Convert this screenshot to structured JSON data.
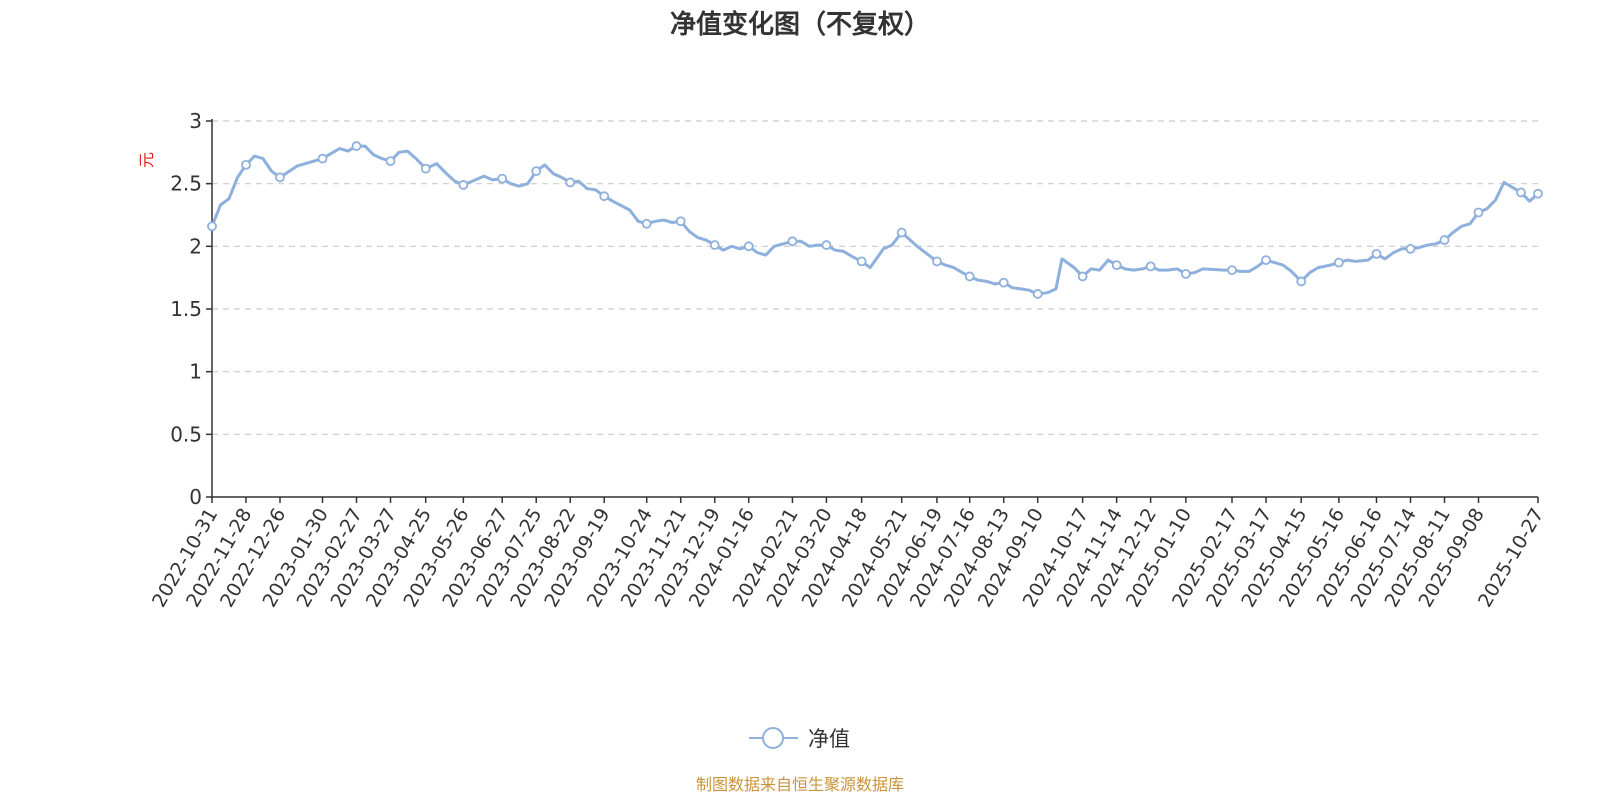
{
  "chart_data": {
    "type": "line",
    "title": "净值变化图（不复权）",
    "ylabel": "元",
    "xlabel": "",
    "ylim": [
      0,
      3
    ],
    "yticks": [
      "0",
      "0.5",
      "1",
      "1.5",
      "2",
      "2.5",
      "3"
    ],
    "grid": true,
    "legend_position": "bottom",
    "line_color": "#8eb0dc",
    "categories": [
      "2022-10-31",
      "2022-11-28",
      "2022-12-26",
      "2023-01-30",
      "2023-02-27",
      "2023-03-27",
      "2023-04-25",
      "2023-05-26",
      "2023-06-27",
      "2023-07-25",
      "2023-08-22",
      "2023-09-19",
      "2023-10-24",
      "2023-11-21",
      "2023-12-19",
      "2024-01-16",
      "2024-02-21",
      "2024-03-20",
      "2024-04-18",
      "2024-05-21",
      "2024-06-19",
      "2024-07-16",
      "2024-08-13",
      "2024-09-10",
      "2024-10-17",
      "2024-11-14",
      "2024-12-12",
      "2025-01-10",
      "2025-02-17",
      "2025-03-17",
      "2025-04-15",
      "2025-05-16",
      "2025-06-16",
      "2025-07-14",
      "2025-08-11",
      "2025-09-08",
      "2025-10-27"
    ],
    "series": [
      {
        "name": "净值",
        "x": [
          "2022-10-31",
          "2022-11-07",
          "2022-11-14",
          "2022-11-21",
          "2022-11-28",
          "2022-12-05",
          "2022-12-12",
          "2022-12-19",
          "2022-12-26",
          "2023-01-09",
          "2023-01-30",
          "2023-02-06",
          "2023-02-13",
          "2023-02-20",
          "2023-02-27",
          "2023-03-06",
          "2023-03-13",
          "2023-03-20",
          "2023-03-27",
          "2023-04-03",
          "2023-04-10",
          "2023-04-17",
          "2023-04-25",
          "2023-05-04",
          "2023-05-12",
          "2023-05-19",
          "2023-05-26",
          "2023-06-05",
          "2023-06-12",
          "2023-06-19",
          "2023-06-27",
          "2023-07-04",
          "2023-07-11",
          "2023-07-18",
          "2023-07-25",
          "2023-08-01",
          "2023-08-08",
          "2023-08-15",
          "2023-08-22",
          "2023-08-29",
          "2023-09-05",
          "2023-09-12",
          "2023-09-19",
          "2023-09-26",
          "2023-10-10",
          "2023-10-17",
          "2023-10-24",
          "2023-10-31",
          "2023-11-07",
          "2023-11-14",
          "2023-11-21",
          "2023-11-28",
          "2023-12-05",
          "2023-12-12",
          "2023-12-19",
          "2023-12-26",
          "2024-01-02",
          "2024-01-09",
          "2024-01-16",
          "2024-01-23",
          "2024-01-30",
          "2024-02-06",
          "2024-02-21",
          "2024-02-28",
          "2024-03-06",
          "2024-03-13",
          "2024-03-20",
          "2024-03-27",
          "2024-04-03",
          "2024-04-10",
          "2024-04-18",
          "2024-04-25",
          "2024-05-06",
          "2024-05-13",
          "2024-05-21",
          "2024-05-28",
          "2024-06-04",
          "2024-06-11",
          "2024-06-19",
          "2024-06-26",
          "2024-07-03",
          "2024-07-10",
          "2024-07-16",
          "2024-07-23",
          "2024-07-30",
          "2024-08-06",
          "2024-08-13",
          "2024-08-20",
          "2024-08-27",
          "2024-09-03",
          "2024-09-10",
          "2024-09-18",
          "2024-09-25",
          "2024-09-30",
          "2024-10-10",
          "2024-10-17",
          "2024-10-24",
          "2024-10-31",
          "2024-11-07",
          "2024-11-14",
          "2024-11-21",
          "2024-11-28",
          "2024-12-05",
          "2024-12-12",
          "2024-12-19",
          "2024-12-26",
          "2025-01-03",
          "2025-01-10",
          "2025-01-17",
          "2025-01-24",
          "2025-02-10",
          "2025-02-17",
          "2025-02-24",
          "2025-03-03",
          "2025-03-10",
          "2025-03-17",
          "2025-03-24",
          "2025-03-31",
          "2025-04-07",
          "2025-04-15",
          "2025-04-22",
          "2025-04-29",
          "2025-05-09",
          "2025-05-16",
          "2025-05-23",
          "2025-05-30",
          "2025-06-09",
          "2025-06-16",
          "2025-06-23",
          "2025-06-30",
          "2025-07-07",
          "2025-07-14",
          "2025-07-21",
          "2025-07-28",
          "2025-08-04",
          "2025-08-11",
          "2025-08-18",
          "2025-08-25",
          "2025-09-01",
          "2025-09-08",
          "2025-09-15",
          "2025-09-22",
          "2025-09-29",
          "2025-10-13",
          "2025-10-20",
          "2025-10-27"
        ],
        "y": [
          2.16,
          2.33,
          2.38,
          2.55,
          2.65,
          2.72,
          2.7,
          2.6,
          2.55,
          2.64,
          2.7,
          2.74,
          2.78,
          2.76,
          2.8,
          2.8,
          2.73,
          2.7,
          2.68,
          2.75,
          2.76,
          2.7,
          2.62,
          2.66,
          2.58,
          2.52,
          2.49,
          2.53,
          2.56,
          2.53,
          2.54,
          2.5,
          2.48,
          2.5,
          2.6,
          2.65,
          2.58,
          2.55,
          2.51,
          2.52,
          2.46,
          2.45,
          2.4,
          2.36,
          2.29,
          2.2,
          2.18,
          2.2,
          2.21,
          2.19,
          2.2,
          2.12,
          2.07,
          2.05,
          2.01,
          1.97,
          2.0,
          1.98,
          2.0,
          1.95,
          1.93,
          2.0,
          2.04,
          2.04,
          2.0,
          2.01,
          2.01,
          1.97,
          1.96,
          1.92,
          1.88,
          1.83,
          1.98,
          2.01,
          2.11,
          2.05,
          1.99,
          1.94,
          1.88,
          1.85,
          1.83,
          1.79,
          1.76,
          1.73,
          1.72,
          1.7,
          1.71,
          1.67,
          1.66,
          1.65,
          1.62,
          1.63,
          1.66,
          1.9,
          1.83,
          1.76,
          1.82,
          1.81,
          1.89,
          1.85,
          1.82,
          1.81,
          1.82,
          1.84,
          1.81,
          1.81,
          1.82,
          1.78,
          1.79,
          1.82,
          1.81,
          1.81,
          1.8,
          1.8,
          1.84,
          1.89,
          1.87,
          1.85,
          1.8,
          1.72,
          1.79,
          1.83,
          1.85,
          1.87,
          1.89,
          1.88,
          1.89,
          1.94,
          1.9,
          1.95,
          1.98,
          1.98,
          1.99,
          2.01,
          2.02,
          2.05,
          2.11,
          2.16,
          2.18,
          2.27,
          2.3,
          2.37,
          2.51,
          2.43,
          2.36,
          2.42
        ]
      }
    ],
    "marked_points": [
      "2022-10-31",
      "2022-11-28",
      "2022-12-26",
      "2023-01-30",
      "2023-02-27",
      "2023-03-27",
      "2023-04-25",
      "2023-05-26",
      "2023-06-27",
      "2023-07-25",
      "2023-08-22",
      "2023-09-19",
      "2023-10-24",
      "2023-11-21",
      "2023-12-19",
      "2024-01-16",
      "2024-02-21",
      "2024-03-20",
      "2024-04-18",
      "2024-05-21",
      "2024-06-19",
      "2024-07-16",
      "2024-08-13",
      "2024-09-10",
      "2024-10-17",
      "2024-11-14",
      "2024-12-12",
      "2025-01-10",
      "2025-02-17",
      "2025-03-17",
      "2025-04-15",
      "2025-05-16",
      "2025-06-16",
      "2025-07-14",
      "2025-08-11",
      "2025-09-08",
      "2025-10-13",
      "2025-10-27"
    ]
  },
  "source_note": "制图数据来自恒生聚源数据库"
}
